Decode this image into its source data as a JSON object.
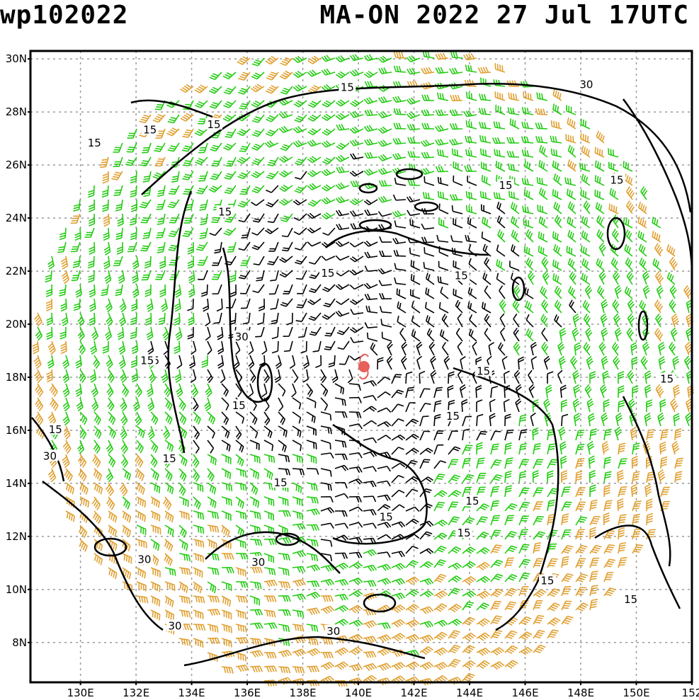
{
  "header": {
    "storm_id": "wp102022",
    "storm_info": "MA-ON 2022 27 Jul 17UTC"
  },
  "map": {
    "lon_range": [
      128.2,
      152.0
    ],
    "lat_range": [
      6.5,
      30.3
    ],
    "lat_ticks": [
      {
        "value": 8,
        "label": "8N"
      },
      {
        "value": 10,
        "label": "10N"
      },
      {
        "value": 12,
        "label": "12N"
      },
      {
        "value": 14,
        "label": "14N"
      },
      {
        "value": 16,
        "label": "16N"
      },
      {
        "value": 18,
        "label": "18N"
      },
      {
        "value": 20,
        "label": "20N"
      },
      {
        "value": 22,
        "label": "22N"
      },
      {
        "value": 24,
        "label": "24N"
      },
      {
        "value": 26,
        "label": "26N"
      },
      {
        "value": 28,
        "label": "28N"
      },
      {
        "value": 30,
        "label": "30N"
      }
    ],
    "lon_ticks": [
      {
        "value": 130,
        "label": "130E"
      },
      {
        "value": 132,
        "label": "132E"
      },
      {
        "value": 134,
        "label": "134E"
      },
      {
        "value": 136,
        "label": "136E"
      },
      {
        "value": 138,
        "label": "138E"
      },
      {
        "value": 140,
        "label": "140E"
      },
      {
        "value": 142,
        "label": "142E"
      },
      {
        "value": 144,
        "label": "144E"
      },
      {
        "value": 146,
        "label": "146E"
      },
      {
        "value": 148,
        "label": "148E"
      },
      {
        "value": 150,
        "label": "150E"
      },
      {
        "value": 152,
        "label": "152"
      }
    ],
    "storm_center": {
      "lon": 140.2,
      "lat": 18.4
    },
    "contour_labels": [
      {
        "text": "15",
        "lon": 130.5,
        "lat": 26.8
      },
      {
        "text": "15",
        "lon": 132.5,
        "lat": 27.3
      },
      {
        "text": "15",
        "lon": 134.8,
        "lat": 27.5
      },
      {
        "text": "15",
        "lon": 135.2,
        "lat": 24.2
      },
      {
        "text": "15",
        "lon": 139.6,
        "lat": 28.9
      },
      {
        "text": "30",
        "lon": 148.2,
        "lat": 29.0
      },
      {
        "text": "15",
        "lon": 145.3,
        "lat": 25.2
      },
      {
        "text": "15",
        "lon": 149.3,
        "lat": 25.4
      },
      {
        "text": "15",
        "lon": 138.9,
        "lat": 21.9
      },
      {
        "text": "15",
        "lon": 143.7,
        "lat": 21.8
      },
      {
        "text": "30",
        "lon": 135.8,
        "lat": 19.5
      },
      {
        "text": "15",
        "lon": 132.6,
        "lat": 18.6
      },
      {
        "text": "15",
        "lon": 132.4,
        "lat": 18.6
      },
      {
        "text": "15",
        "lon": 135.7,
        "lat": 16.9
      },
      {
        "text": "15",
        "lon": 144.5,
        "lat": 18.2
      },
      {
        "text": "15",
        "lon": 151.1,
        "lat": 17.9
      },
      {
        "text": "15",
        "lon": 143.4,
        "lat": 16.5
      },
      {
        "text": "15",
        "lon": 129.1,
        "lat": 16.0
      },
      {
        "text": "30",
        "lon": 128.9,
        "lat": 15.0
      },
      {
        "text": "15",
        "lon": 133.2,
        "lat": 14.9
      },
      {
        "text": "15",
        "lon": 137.2,
        "lat": 14.0
      },
      {
        "text": "15",
        "lon": 144.1,
        "lat": 13.3
      },
      {
        "text": "15",
        "lon": 143.8,
        "lat": 12.1
      },
      {
        "text": "15",
        "lon": 141.0,
        "lat": 12.7
      },
      {
        "text": "30",
        "lon": 132.3,
        "lat": 11.1
      },
      {
        "text": "30",
        "lon": 136.4,
        "lat": 11.0
      },
      {
        "text": "15",
        "lon": 146.8,
        "lat": 10.3
      },
      {
        "text": "15",
        "lon": 149.8,
        "lat": 9.6
      },
      {
        "text": "30",
        "lon": 133.4,
        "lat": 8.6
      },
      {
        "text": "30",
        "lon": 139.1,
        "lat": 8.4
      }
    ]
  }
}
